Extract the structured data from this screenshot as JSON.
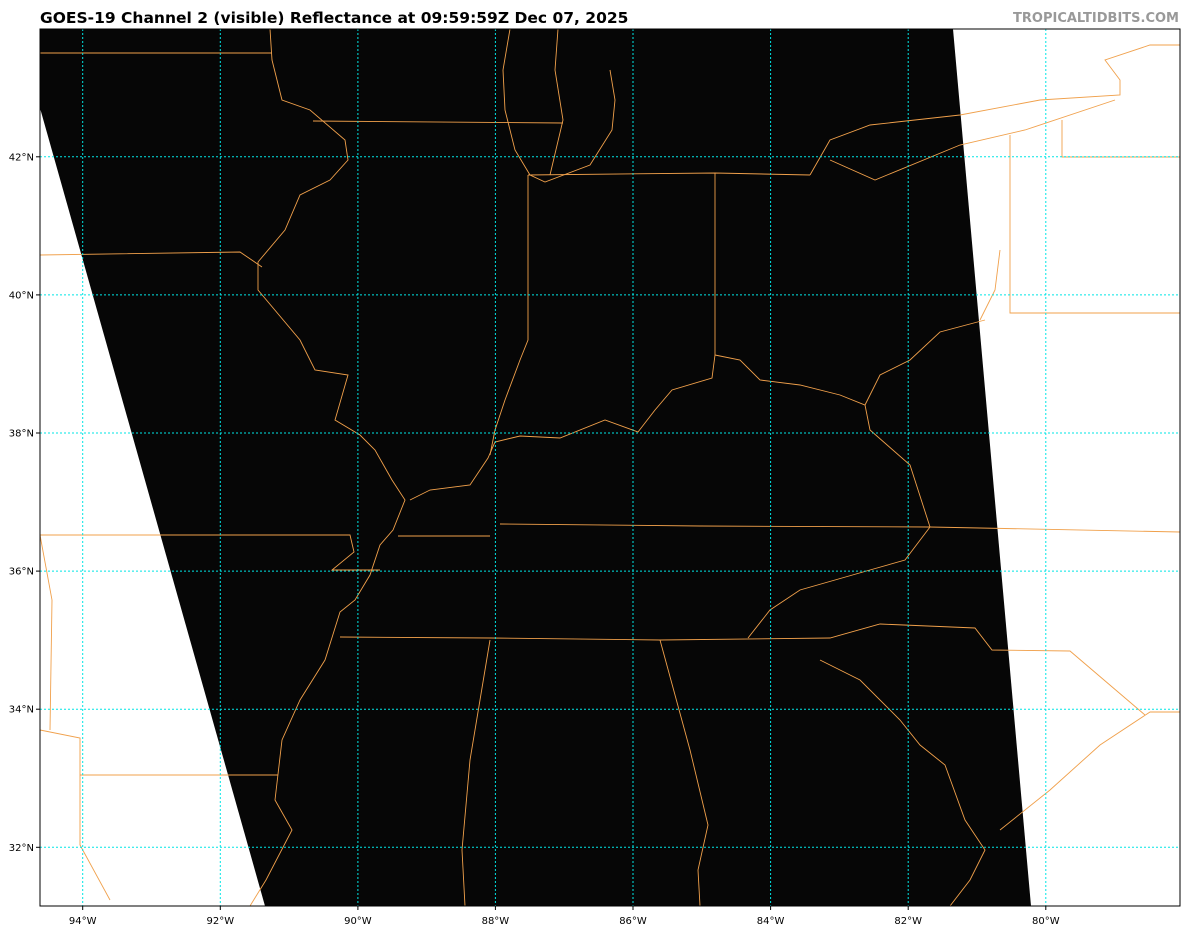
{
  "header": {
    "title": "GOES-19 Channel 2 (visible) Reflectance at 09:59:59Z Dec 07, 2025",
    "credit": "TROPICALTIDBITS.COM"
  },
  "map": {
    "extent": {
      "lon": [
        -94.62,
        -78.05
      ],
      "lat": [
        31.15,
        43.85
      ]
    },
    "longitudes": [
      -94,
      -92,
      -90,
      -88,
      -86,
      -84,
      -82,
      -80
    ],
    "latitudes": [
      42,
      40,
      38,
      36,
      34,
      32
    ],
    "lon_labels": [
      "94°W",
      "92°W",
      "90°W",
      "88°W",
      "86°W",
      "84°W",
      "82°W",
      "80°W"
    ],
    "lat_labels": [
      "42°N",
      "40°N",
      "38°N",
      "36°N",
      "34°N",
      "32°N"
    ],
    "colors": {
      "imagery": "#060606",
      "boundaries": "#f0a04b",
      "gridlines": "#00e5e5",
      "background": "#ffffff"
    }
  }
}
